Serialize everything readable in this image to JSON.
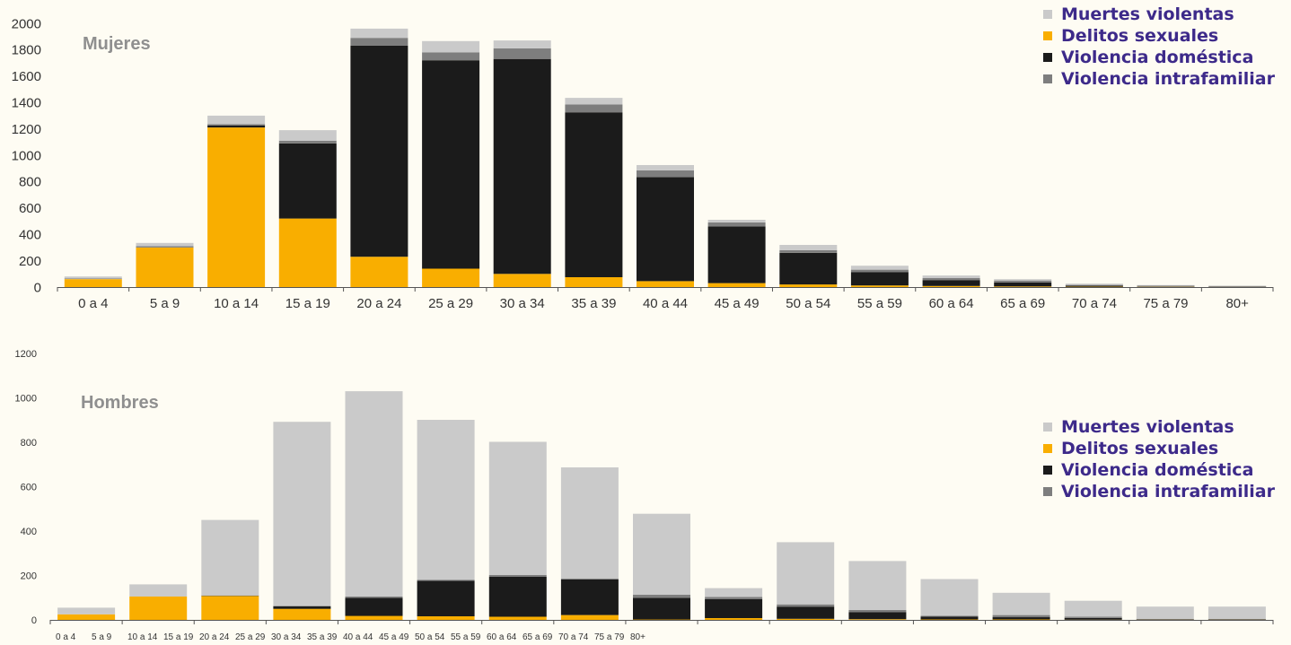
{
  "colors": {
    "muertes_violentas": "#CACACA",
    "delitos_sexuales": "#F9AE00",
    "violencia_domestica": "#1B1B1B",
    "violencia_intrafamiliar": "#7E7E7E",
    "legend_text": "#3D2A8A",
    "panel_title": "#8F8F8F"
  },
  "chart_data": [
    {
      "type": "bar",
      "stacked": true,
      "title": "Mujeres",
      "categories": [
        "0 a 4",
        "5 a 9",
        "10 a 14",
        "15 a 19",
        "20 a 24",
        "25 a 29",
        "30 a 34",
        "35 a 39",
        "40 a 44",
        "45 a 49",
        "50 a 54",
        "55 a 59",
        "60 a 64",
        "65 a 69",
        "70 a 74",
        "75 a 79",
        "80+"
      ],
      "yticks": [
        0,
        200,
        400,
        600,
        800,
        1000,
        1200,
        1400,
        1600,
        1800,
        2000
      ],
      "ylim": [
        0,
        2000
      ],
      "grid": false,
      "legend": "top-right",
      "series": [
        {
          "name": "Delitos sexuales",
          "key": "delitos_sexuales",
          "values": [
            60,
            300,
            1210,
            520,
            230,
            140,
            100,
            75,
            45,
            30,
            20,
            12,
            8,
            5,
            3,
            2,
            1
          ]
        },
        {
          "name": "Violencia doméstica",
          "key": "violencia_domestica",
          "values": [
            0,
            0,
            15,
            570,
            1600,
            1580,
            1630,
            1250,
            790,
            430,
            240,
            100,
            45,
            30,
            8,
            3,
            2
          ]
        },
        {
          "name": "Violencia intrafamiliar",
          "key": "violencia_intrafamiliar",
          "values": [
            5,
            10,
            10,
            20,
            60,
            60,
            80,
            60,
            50,
            30,
            20,
            20,
            15,
            15,
            5,
            5,
            3
          ]
        },
        {
          "name": "Muertes violentas",
          "key": "muertes_violentas",
          "values": [
            15,
            25,
            65,
            80,
            70,
            85,
            60,
            50,
            40,
            20,
            40,
            30,
            20,
            10,
            10,
            5,
            5
          ]
        }
      ]
    },
    {
      "type": "bar",
      "stacked": true,
      "title": "Hombres",
      "categories": [
        "0 a 4",
        "5 a 9",
        "10 a 14",
        "15 a 19",
        "20 a 24",
        "25 a 29",
        "30 a 34",
        "35 a 39",
        "40 a 44",
        "45 a 49",
        "50 a 54",
        "55 a 59",
        "60 a 64",
        "65 a 69",
        "70 a 74",
        "75 a 79",
        "80+"
      ],
      "yticks": [
        0,
        200,
        400,
        600,
        800,
        1000,
        1200
      ],
      "ylim": [
        0,
        1200
      ],
      "grid": false,
      "legend": "right",
      "bar_count": 17,
      "series": [
        {
          "name": "Delitos sexuales",
          "key": "delitos_sexuales",
          "values": [
            25,
            105,
            108,
            50,
            18,
            16,
            14,
            22,
            2,
            8,
            5,
            3,
            2,
            2,
            1,
            1,
            1
          ]
        },
        {
          "name": "Violencia doméstica",
          "key": "violencia_domestica",
          "values": [
            0,
            0,
            2,
            12,
            82,
            160,
            180,
            160,
            98,
            85,
            55,
            32,
            12,
            10,
            8,
            2,
            2
          ]
        },
        {
          "name": "Violencia intrafamiliar",
          "key": "violencia_intrafamiliar",
          "values": [
            0,
            0,
            0,
            0,
            5,
            5,
            8,
            5,
            13,
            10,
            10,
            10,
            5,
            10,
            5,
            2,
            2
          ]
        },
        {
          "name": "Muertes violentas",
          "key": "muertes_violentas",
          "values": [
            30,
            55,
            340,
            830,
            925,
            720,
            600,
            500,
            365,
            40,
            280,
            220,
            165,
            100,
            72,
            55,
            55
          ]
        }
      ]
    }
  ]
}
